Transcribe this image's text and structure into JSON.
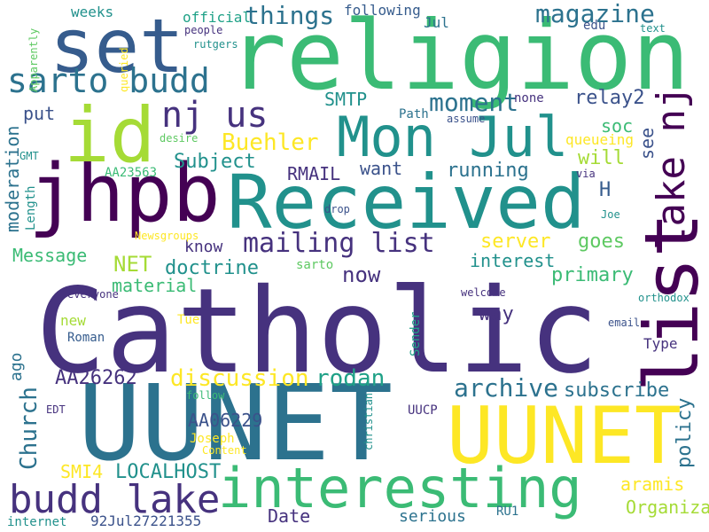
{
  "palette": {
    "deep_purple": "#440154",
    "purple": "#46327e",
    "indigo": "#3b528b",
    "blue": "#365c8d",
    "steel": "#2c728e",
    "teal": "#21918c",
    "sea": "#1fa187",
    "green": "#3bbb75",
    "lime": "#5ec962",
    "yellow_green": "#a5db36",
    "yellow": "#fde725"
  },
  "words": [
    {
      "text": "Catholic",
      "color": "#46327e"
    },
    {
      "text": "religion",
      "color": "#3bbb75"
    },
    {
      "text": "UUNET",
      "color": "#2c728e"
    },
    {
      "text": "UUNET",
      "color": "#fde725"
    },
    {
      "text": "Received",
      "color": "#21918c"
    },
    {
      "text": "list",
      "color": "#440154"
    },
    {
      "text": "jhpb",
      "color": "#440154"
    },
    {
      "text": "set",
      "color": "#365c8d"
    },
    {
      "text": "Mon Jul",
      "color": "#21918c"
    },
    {
      "text": "id",
      "color": "#a5db36"
    },
    {
      "text": "interesting",
      "color": "#3bbb75"
    },
    {
      "text": "budd lake",
      "color": "#46327e"
    },
    {
      "text": "lake nj",
      "color": "#440154"
    },
    {
      "text": "sarto budd",
      "color": "#2c728e"
    },
    {
      "text": "nj us",
      "color": "#46327e"
    },
    {
      "text": "mailing list",
      "color": "#46327e"
    },
    {
      "text": "things",
      "color": "#2c728e"
    },
    {
      "text": "magazine",
      "color": "#2c728e"
    },
    {
      "text": "moment",
      "color": "#2c728e"
    },
    {
      "text": "archive",
      "color": "#2c728e"
    },
    {
      "text": "discussion",
      "color": "#fde725"
    },
    {
      "text": "rodan",
      "color": "#1fa187"
    },
    {
      "text": "subscribe",
      "color": "#2c728e"
    },
    {
      "text": "policy",
      "color": "#2c728e"
    },
    {
      "text": "Church",
      "color": "#2c728e"
    },
    {
      "text": "Buehler",
      "color": "#fde725"
    },
    {
      "text": "Subject",
      "color": "#21918c"
    },
    {
      "text": "server",
      "color": "#fde725"
    },
    {
      "text": "goes",
      "color": "#5ec962"
    },
    {
      "text": "interest",
      "color": "#21918c"
    },
    {
      "text": "doctrine",
      "color": "#21918c"
    },
    {
      "text": "NET",
      "color": "#a5db36"
    },
    {
      "text": "now",
      "color": "#46327e"
    },
    {
      "text": "primary",
      "color": "#3bbb75"
    },
    {
      "text": "way",
      "color": "#46327e"
    },
    {
      "text": "material",
      "color": "#3bbb75"
    },
    {
      "text": "Message",
      "color": "#3bbb75"
    },
    {
      "text": "know",
      "color": "#46327e"
    },
    {
      "text": "want",
      "color": "#3b528b"
    },
    {
      "text": "running",
      "color": "#2c728e"
    },
    {
      "text": "RMAIL",
      "color": "#46327e"
    },
    {
      "text": "SMTP",
      "color": "#21918c"
    },
    {
      "text": "relay2",
      "color": "#3b528b"
    },
    {
      "text": "soc",
      "color": "#3bbb75"
    },
    {
      "text": "will",
      "color": "#a5db36"
    },
    {
      "text": "H",
      "color": "#365c8d"
    },
    {
      "text": "see",
      "color": "#3b528b"
    },
    {
      "text": "put",
      "color": "#3b528b"
    },
    {
      "text": "moderation",
      "color": "#2c728e"
    },
    {
      "text": "AA26262",
      "color": "#46327e"
    },
    {
      "text": "AA06229",
      "color": "#3b528b"
    },
    {
      "text": "LOCALHOST",
      "color": "#21918c"
    },
    {
      "text": "SMI4",
      "color": "#fde725"
    },
    {
      "text": "aramis",
      "color": "#fde725"
    },
    {
      "text": "Organization",
      "color": "#a5db36"
    },
    {
      "text": "Date",
      "color": "#46327e"
    },
    {
      "text": "serious",
      "color": "#2c728e"
    },
    {
      "text": "ago",
      "color": "#2c728e"
    },
    {
      "text": "new",
      "color": "#a5db36"
    },
    {
      "text": "following",
      "color": "#365c8d"
    },
    {
      "text": "queueing",
      "color": "#fde725"
    },
    {
      "text": "Jul",
      "color": "#2c728e"
    },
    {
      "text": "weeks",
      "color": "#21918c"
    },
    {
      "text": "official",
      "color": "#1fa187"
    },
    {
      "text": "people",
      "color": "#46327e"
    },
    {
      "text": "rutgers",
      "color": "#21918c"
    },
    {
      "text": "Apparently",
      "color": "#5ec962"
    },
    {
      "text": "queried",
      "color": "#fde725"
    },
    {
      "text": "edu",
      "color": "#3b528b"
    },
    {
      "text": "text",
      "color": "#21918c"
    },
    {
      "text": "none",
      "color": "#46327e"
    },
    {
      "text": "Path",
      "color": "#2c728e"
    },
    {
      "text": "assume",
      "color": "#3b528b"
    },
    {
      "text": "desire",
      "color": "#5ec962"
    },
    {
      "text": "GMT",
      "color": "#21918c"
    },
    {
      "text": "AA23563",
      "color": "#3bbb75"
    },
    {
      "text": "via",
      "color": "#46327e"
    },
    {
      "text": "Joe",
      "color": "#21918c"
    },
    {
      "text": "Length",
      "color": "#21918c"
    },
    {
      "text": "Newsgroups",
      "color": "#fde725"
    },
    {
      "text": "drop",
      "color": "#3b528b"
    },
    {
      "text": "sarto",
      "color": "#5ec962"
    },
    {
      "text": "everyone",
      "color": "#46327e"
    },
    {
      "text": "welcome",
      "color": "#46327e"
    },
    {
      "text": "orthodox",
      "color": "#21918c"
    },
    {
      "text": "Tue",
      "color": "#fde725"
    },
    {
      "text": "email",
      "color": "#3b528b"
    },
    {
      "text": "mail",
      "color": "#46327e"
    },
    {
      "text": "Sender",
      "color": "#1fa187"
    },
    {
      "text": "Type",
      "color": "#46327e"
    },
    {
      "text": "Roman",
      "color": "#365c8d"
    },
    {
      "text": "follow",
      "color": "#3bbb75"
    },
    {
      "text": "EDT",
      "color": "#46327e"
    },
    {
      "text": "UUCP",
      "color": "#46327e"
    },
    {
      "text": "Joseph",
      "color": "#fde725"
    },
    {
      "text": "christian",
      "color": "#21918c"
    },
    {
      "text": "Content",
      "color": "#fde725"
    },
    {
      "text": "RU1",
      "color": "#2c728e"
    },
    {
      "text": "internet",
      "color": "#21918c"
    },
    {
      "text": "92Jul27221355",
      "color": "#3b528b"
    }
  ]
}
